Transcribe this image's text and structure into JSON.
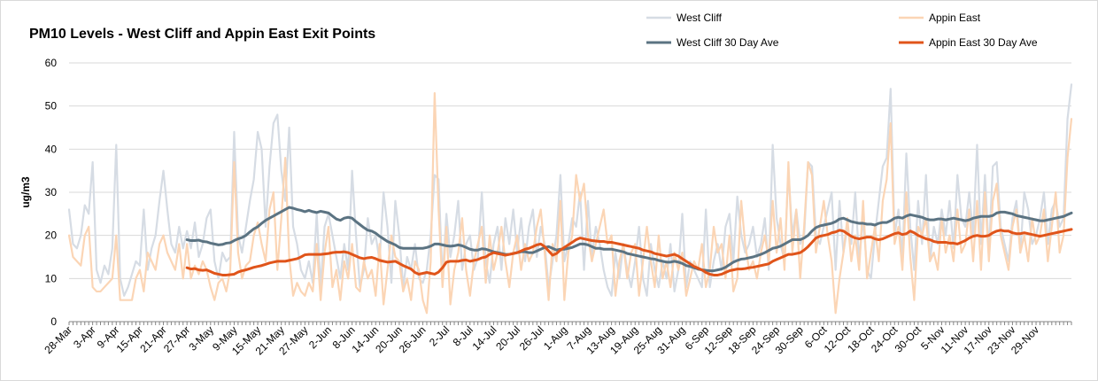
{
  "chart_data": {
    "type": "line",
    "title": "PM10 Levels - West Cliff and Appin East Exit Points",
    "y_label": "ug/m3",
    "ylim": [
      0,
      60
    ],
    "yticks": [
      0,
      10,
      20,
      30,
      40,
      50,
      60
    ],
    "grid": true,
    "categories": [
      "28-Mar",
      null,
      null,
      null,
      null,
      null,
      "3-Apr",
      null,
      null,
      null,
      null,
      null,
      "9-Apr",
      null,
      null,
      null,
      null,
      null,
      "15-Apr",
      null,
      null,
      null,
      null,
      null,
      "21-Apr",
      null,
      null,
      null,
      null,
      null,
      "27-Apr",
      null,
      null,
      null,
      null,
      null,
      "3-May",
      null,
      null,
      null,
      null,
      null,
      "9-May",
      null,
      null,
      null,
      null,
      null,
      "15-May",
      null,
      null,
      null,
      null,
      null,
      "21-May",
      null,
      null,
      null,
      null,
      null,
      "27-May",
      null,
      null,
      null,
      null,
      null,
      "2-Jun",
      null,
      null,
      null,
      null,
      null,
      "8-Jun",
      null,
      null,
      null,
      null,
      null,
      "14-Jun",
      null,
      null,
      null,
      null,
      null,
      "20-Jun",
      null,
      null,
      null,
      null,
      null,
      "26-Jun",
      null,
      null,
      null,
      null,
      null,
      "2-Jul",
      null,
      null,
      null,
      null,
      null,
      "8-Jul",
      null,
      null,
      null,
      null,
      null,
      "14-Jul",
      null,
      null,
      null,
      null,
      null,
      "20-Jul",
      null,
      null,
      null,
      null,
      null,
      "26-Jul",
      null,
      null,
      null,
      null,
      null,
      "1-Aug",
      null,
      null,
      null,
      null,
      null,
      "7-Aug",
      null,
      null,
      null,
      null,
      null,
      "13-Aug",
      null,
      null,
      null,
      null,
      null,
      "19-Aug",
      null,
      null,
      null,
      null,
      null,
      "25-Aug",
      null,
      null,
      null,
      null,
      null,
      "31-Aug",
      null,
      null,
      null,
      null,
      null,
      "6-Sep",
      null,
      null,
      null,
      null,
      null,
      "12-Sep",
      null,
      null,
      null,
      null,
      null,
      "18-Sep",
      null,
      null,
      null,
      null,
      null,
      "24-Sep",
      null,
      null,
      null,
      null,
      null,
      "30-Sep",
      null,
      null,
      null,
      null,
      null,
      "6-Oct",
      null,
      null,
      null,
      null,
      null,
      "12-Oct",
      null,
      null,
      null,
      null,
      null,
      "18-Oct",
      null,
      null,
      null,
      null,
      null,
      "24-Oct",
      null,
      null,
      null,
      null,
      null,
      "30-Oct",
      null,
      null,
      null,
      null,
      null,
      "5-Nov",
      null,
      null,
      null,
      null,
      null,
      "11-Nov",
      null,
      null,
      null,
      null,
      null,
      "17-Nov",
      null,
      null,
      null,
      null,
      null,
      "23-Nov",
      null,
      null,
      null,
      null,
      null,
      "29-Nov",
      null,
      null,
      null,
      null,
      null,
      null,
      null,
      null,
      null
    ],
    "series": [
      {
        "name": "West Cliff",
        "color": "#d6dce4",
        "values": [
          26,
          18,
          17,
          20,
          27,
          25,
          37,
          12,
          9,
          13,
          11,
          17,
          41,
          10,
          6,
          8,
          11,
          14,
          13,
          26,
          12,
          17,
          20,
          28,
          35,
          26,
          18,
          16,
          22,
          17,
          21,
          17,
          23,
          15,
          18,
          24,
          26,
          14,
          10,
          16,
          14,
          15,
          44,
          20,
          16,
          22,
          28,
          33,
          44,
          40,
          22,
          36,
          46,
          48,
          35,
          28,
          45,
          22,
          18,
          12,
          10,
          14,
          9,
          25,
          8,
          22,
          25,
          20,
          15,
          10,
          18,
          12,
          35,
          20,
          8,
          12,
          24,
          18,
          20,
          14,
          30,
          22,
          9,
          28,
          20,
          8,
          15,
          12,
          18,
          10,
          9,
          12,
          20,
          34,
          33,
          10,
          25,
          15,
          20,
          28,
          12,
          18,
          20,
          12,
          15,
          30,
          14,
          9,
          18,
          22,
          12,
          24,
          18,
          26,
          16,
          24,
          14,
          22,
          26,
          15,
          22,
          18,
          8,
          14,
          20,
          34,
          14,
          18,
          24,
          22,
          30,
          12,
          28,
          15,
          22,
          18,
          12,
          8,
          6,
          16,
          10,
          18,
          12,
          8,
          14,
          22,
          10,
          6,
          18,
          12,
          8,
          14,
          10,
          18,
          7,
          12,
          25,
          8,
          14,
          12,
          10,
          8,
          26,
          8,
          14,
          18,
          12,
          22,
          25,
          14,
          29,
          20,
          16,
          18,
          22,
          15,
          18,
          24,
          12,
          41,
          24,
          18,
          14,
          35,
          20,
          26,
          18,
          20,
          37,
          36,
          20,
          18,
          22,
          26,
          30,
          12,
          28,
          16,
          22,
          18,
          30,
          14,
          24,
          12,
          10,
          20,
          28,
          36,
          38,
          54,
          20,
          26,
          15,
          39,
          22,
          12,
          28,
          18,
          34,
          14,
          22,
          18,
          26,
          20,
          28,
          17,
          34,
          24,
          22,
          30,
          20,
          41,
          18,
          34,
          16,
          36,
          37,
          22,
          18,
          14,
          24,
          28,
          16,
          30,
          26,
          18,
          20,
          24,
          30,
          18,
          26,
          28,
          22,
          24,
          47,
          55
        ]
      },
      {
        "name": "Appin East",
        "color": "#fbd5b5",
        "values": [
          20,
          15,
          14,
          13,
          20,
          22,
          8,
          7,
          7,
          8,
          9,
          10,
          20,
          5,
          5,
          5,
          5,
          10,
          12,
          7,
          16,
          14,
          12,
          18,
          20,
          16,
          14,
          12,
          18,
          10,
          18,
          10,
          13,
          11,
          14,
          12,
          8,
          5,
          9,
          10,
          7,
          12,
          37,
          16,
          10,
          13,
          14,
          20,
          23,
          18,
          14,
          26,
          30,
          12,
          24,
          38,
          15,
          6,
          9,
          7,
          6,
          9,
          7,
          18,
          5,
          16,
          22,
          8,
          12,
          5,
          14,
          10,
          18,
          8,
          7,
          14,
          10,
          12,
          6,
          18,
          4,
          12,
          20,
          15,
          14,
          7,
          10,
          5,
          14,
          12,
          5,
          2,
          14,
          53,
          26,
          8,
          22,
          4,
          12,
          16,
          24,
          12,
          6,
          14,
          18,
          22,
          9,
          20,
          12,
          16,
          22,
          14,
          8,
          16,
          20,
          12,
          18,
          14,
          16,
          22,
          26,
          16,
          5,
          18,
          14,
          28,
          5,
          16,
          20,
          34,
          28,
          32,
          20,
          14,
          18,
          22,
          26,
          18,
          20,
          6,
          14,
          18,
          10,
          16,
          18,
          6,
          14,
          22,
          14,
          8,
          20,
          10,
          14,
          8,
          16,
          12,
          16,
          6,
          10,
          14,
          12,
          18,
          8,
          12,
          22,
          16,
          18,
          10,
          20,
          7,
          10,
          28,
          18,
          12,
          14,
          10,
          16,
          20,
          14,
          28,
          16,
          24,
          12,
          37,
          16,
          26,
          10,
          22,
          37,
          34,
          16,
          22,
          28,
          20,
          14,
          2,
          10,
          16,
          24,
          14,
          20,
          12,
          28,
          10,
          16,
          22,
          14,
          28,
          33,
          46,
          18,
          22,
          12,
          30,
          15,
          5,
          22,
          20,
          24,
          14,
          16,
          12,
          24,
          16,
          20,
          14,
          26,
          16,
          18,
          26,
          14,
          28,
          12,
          30,
          14,
          28,
          32,
          20,
          16,
          12,
          22,
          26,
          16,
          20,
          14,
          24,
          18,
          20,
          26,
          14,
          22,
          30,
          16,
          20,
          38,
          47
        ]
      },
      {
        "name": "West Cliff 30 Day Ave",
        "color": "#5b7382",
        "values": [
          null,
          null,
          null,
          null,
          null,
          null,
          null,
          null,
          null,
          null,
          null,
          null,
          null,
          null,
          null,
          null,
          null,
          null,
          null,
          null,
          null,
          null,
          null,
          null,
          null,
          null,
          null,
          null,
          null,
          null,
          19,
          18.8,
          18.8,
          18.9,
          18.6,
          18.5,
          18.2,
          18,
          17.8,
          17.9,
          18.2,
          18.3,
          18.8,
          19.2,
          19.5,
          20,
          20.8,
          21.5,
          22,
          22.8,
          23.5,
          24,
          24.5,
          25,
          25.5,
          26,
          26.5,
          26.3,
          26,
          25.8,
          25.5,
          25.8,
          25.5,
          25.3,
          25.6,
          25.4,
          25.2,
          24.5,
          23.8,
          23.5,
          24,
          24.2,
          24,
          23.2,
          22.5,
          21.8,
          21.2,
          21,
          20.5,
          19.8,
          19.2,
          18.6,
          18.2,
          17.8,
          17.2,
          17,
          17,
          17,
          17,
          17,
          17,
          17.2,
          17.5,
          18,
          18,
          17.8,
          17.6,
          17.5,
          17.6,
          17.8,
          17.6,
          17.2,
          16.8,
          16.6,
          16.6,
          16.9,
          16.8,
          16.5,
          16.2,
          16,
          15.8,
          15.6,
          15.6,
          15.8,
          16,
          16.2,
          16.2,
          16,
          16,
          16.4,
          16.8,
          17.2,
          17.4,
          17,
          16.6,
          16.8,
          16.8,
          17,
          17.2,
          17.6,
          18,
          18,
          17.8,
          17.4,
          17,
          17,
          16.8,
          16.8,
          16.8,
          16.6,
          16.4,
          16.2,
          15.8,
          15.6,
          15.4,
          15.2,
          15,
          14.8,
          14.6,
          14.5,
          14.2,
          14,
          13.8,
          13.8,
          14,
          13.8,
          13.5,
          13,
          12.8,
          12.5,
          12.2,
          12,
          11.9,
          11.8,
          11.8,
          12,
          12.2,
          12.6,
          13.2,
          13.8,
          14.2,
          14.5,
          14.6,
          14.8,
          15,
          15.3,
          15.6,
          16,
          16.5,
          17,
          17.2,
          17.5,
          18,
          18.5,
          19,
          19,
          19,
          19.4,
          20,
          21,
          21.8,
          22.2,
          22.4,
          22.6,
          22.8,
          23.2,
          23.8,
          24,
          23.6,
          23.2,
          23,
          22.8,
          22.8,
          22.6,
          22.6,
          22.4,
          22.8,
          23,
          23,
          23.4,
          24,
          24.2,
          24,
          24.5,
          24.8,
          24.6,
          24.4,
          24.2,
          23.8,
          23.6,
          23.6,
          23.8,
          23.8,
          23.6,
          23.8,
          24,
          23.8,
          23.6,
          23.4,
          23.6,
          24,
          24.2,
          24.4,
          24.4,
          24.4,
          24.6,
          25.2,
          25.4,
          25.4,
          25.2,
          25,
          24.6,
          24.4,
          24.2,
          24,
          23.8,
          23.6,
          23.4,
          23.4,
          23.6,
          23.8,
          24,
          24.2,
          24.4,
          24.8,
          25.2
        ]
      },
      {
        "name": "Appin East 30 Day Ave",
        "color": "#e0541a",
        "values": [
          null,
          null,
          null,
          null,
          null,
          null,
          null,
          null,
          null,
          null,
          null,
          null,
          null,
          null,
          null,
          null,
          null,
          null,
          null,
          null,
          null,
          null,
          null,
          null,
          null,
          null,
          null,
          null,
          null,
          null,
          12.5,
          12.2,
          12.3,
          12,
          11.9,
          12,
          11.6,
          11.2,
          11,
          10.8,
          10.8,
          10.9,
          11,
          11.5,
          11.8,
          12,
          12.3,
          12.6,
          12.8,
          13,
          13.3,
          13.6,
          13.8,
          14,
          14,
          14,
          14.2,
          14.4,
          14.6,
          15,
          15.5,
          15.6,
          15.6,
          15.6,
          15.6,
          15.7,
          15.8,
          16,
          16.1,
          16.1,
          16.2,
          16,
          15.6,
          15.2,
          14.8,
          14.6,
          14.8,
          14.9,
          14.6,
          14.2,
          14,
          13.8,
          13.9,
          14,
          13.5,
          13,
          12.6,
          12.2,
          11.4,
          11,
          11.2,
          11.4,
          11.2,
          11,
          11.5,
          12.5,
          13.8,
          14,
          14,
          14,
          14.2,
          14.3,
          14,
          14.2,
          14.4,
          14.8,
          15,
          15.6,
          16,
          15.8,
          15.6,
          15.4,
          15.6,
          15.8,
          16,
          16.4,
          16.8,
          17,
          17.4,
          17.8,
          18,
          17.4,
          16.4,
          15.4,
          15.8,
          16.6,
          17.2,
          17.8,
          18.4,
          19,
          19.4,
          19.2,
          19,
          18.8,
          18.7,
          18.6,
          18.6,
          18.4,
          18.4,
          18.2,
          18,
          17.8,
          17.6,
          17.4,
          17.2,
          17,
          16.6,
          16.4,
          16.2,
          15.8,
          15.6,
          15.4,
          15.2,
          15.4,
          15.6,
          15.2,
          14.6,
          14,
          13.4,
          12.8,
          12.4,
          12,
          11.4,
          11,
          10.8,
          10.8,
          11,
          11.4,
          11.8,
          12,
          12.2,
          12.2,
          12.3,
          12.5,
          12.6,
          12.8,
          13,
          13.2,
          13.4,
          14,
          14.4,
          14.8,
          15.2,
          15.6,
          15.6,
          15.8,
          16,
          16.6,
          17.4,
          18.4,
          19.4,
          19.8,
          20,
          20.2,
          20.6,
          20.8,
          21.2,
          21,
          20.4,
          19.8,
          19.4,
          19.2,
          19.4,
          19.6,
          19.6,
          19.2,
          19,
          19.2,
          19.6,
          20,
          20.4,
          20.6,
          20.2,
          20.4,
          21,
          20.6,
          20,
          19.6,
          19.2,
          19,
          18.6,
          18.4,
          18.4,
          18.4,
          18.2,
          18.2,
          18,
          18.4,
          18.8,
          19.4,
          19.8,
          20,
          19.8,
          19.8,
          20,
          20.6,
          21,
          21.2,
          21,
          21,
          20.6,
          20.4,
          20.4,
          20.6,
          20.4,
          20.2,
          20,
          19.8,
          20,
          20.2,
          20.4,
          20.6,
          20.8,
          21,
          21.2,
          21.4
        ]
      }
    ]
  }
}
